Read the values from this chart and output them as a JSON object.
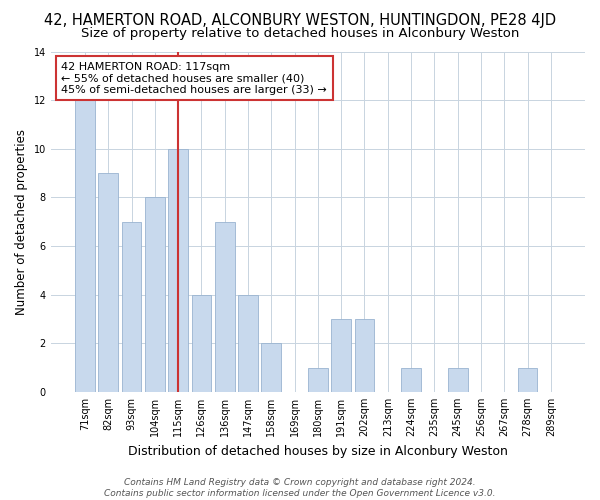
{
  "title": "42, HAMERTON ROAD, ALCONBURY WESTON, HUNTINGDON, PE28 4JD",
  "subtitle": "Size of property relative to detached houses in Alconbury Weston",
  "xlabel": "Distribution of detached houses by size in Alconbury Weston",
  "ylabel": "Number of detached properties",
  "bar_labels": [
    "71sqm",
    "82sqm",
    "93sqm",
    "104sqm",
    "115sqm",
    "126sqm",
    "136sqm",
    "147sqm",
    "158sqm",
    "169sqm",
    "180sqm",
    "191sqm",
    "202sqm",
    "213sqm",
    "224sqm",
    "235sqm",
    "245sqm",
    "256sqm",
    "267sqm",
    "278sqm",
    "289sqm"
  ],
  "bar_values": [
    12,
    9,
    7,
    8,
    10,
    4,
    7,
    4,
    2,
    0,
    1,
    3,
    3,
    0,
    1,
    0,
    1,
    0,
    0,
    1,
    0
  ],
  "bar_color": "#c8d9ed",
  "bar_edge_color": "#9ab4d0",
  "vline_x": 4,
  "vline_color": "#cc3333",
  "ylim": [
    0,
    14
  ],
  "yticks": [
    0,
    2,
    4,
    6,
    8,
    10,
    12,
    14
  ],
  "annotation_title": "42 HAMERTON ROAD: 117sqm",
  "annotation_line1": "← 55% of detached houses are smaller (40)",
  "annotation_line2": "45% of semi-detached houses are larger (33) →",
  "footer_line1": "Contains HM Land Registry data © Crown copyright and database right 2024.",
  "footer_line2": "Contains public sector information licensed under the Open Government Licence v3.0.",
  "bg_color": "#ffffff",
  "grid_color": "#c8d4e0",
  "title_fontsize": 10.5,
  "subtitle_fontsize": 9.5,
  "xlabel_fontsize": 9,
  "ylabel_fontsize": 8.5,
  "tick_fontsize": 7,
  "annotation_fontsize": 8,
  "footer_fontsize": 6.5
}
